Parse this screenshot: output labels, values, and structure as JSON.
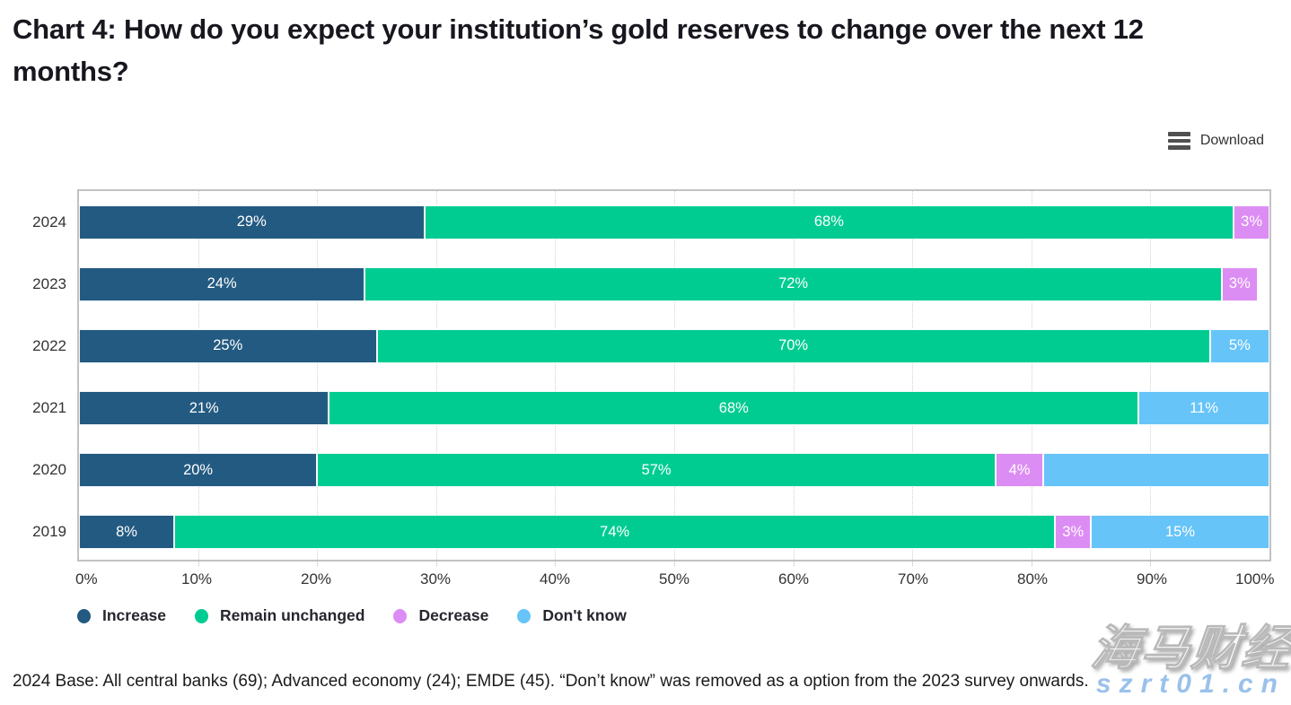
{
  "title": "Chart 4: How do you expect your institution’s gold reserves to change over the next 12 months?",
  "toolbar": {
    "download_label": "Download",
    "menu_icon": "hamburger-icon"
  },
  "colors": {
    "increase": "#235a81",
    "remain_unchanged": "#00cc92",
    "decrease": "#dc8df3",
    "dont_know": "#66c4f8",
    "plot_border": "#c2c2c2",
    "gridline": "#d2d2d2",
    "bar_label_text": "#ffffff"
  },
  "chart_data": {
    "type": "bar",
    "orientation": "horizontal",
    "stacked": true,
    "grid": "vertical-dotted",
    "legend_position": "bottom-left",
    "categories": [
      "2024",
      "2023",
      "2022",
      "2021",
      "2020",
      "2019"
    ],
    "series": [
      {
        "name": "Increase",
        "color": "#235a81",
        "values": [
          29,
          24,
          25,
          21,
          20,
          8
        ]
      },
      {
        "name": "Remain unchanged",
        "color": "#00cc92",
        "values": [
          68,
          72,
          70,
          68,
          57,
          74
        ]
      },
      {
        "name": "Decrease",
        "color": "#dc8df3",
        "values": [
          3,
          3,
          0,
          0,
          4,
          3
        ]
      },
      {
        "name": "Don't know",
        "color": "#66c4f8",
        "values": [
          0,
          0,
          5,
          11,
          19,
          15
        ]
      }
    ],
    "data_labels": [
      {
        "category": "2024",
        "labels": [
          "29%",
          "68%",
          "3%",
          ""
        ]
      },
      {
        "category": "2023",
        "labels": [
          "24%",
          "72%",
          "3%",
          ""
        ]
      },
      {
        "category": "2022",
        "labels": [
          "25%",
          "70%",
          "",
          "5%"
        ]
      },
      {
        "category": "2021",
        "labels": [
          "21%",
          "68%",
          "",
          "11%"
        ]
      },
      {
        "category": "2020",
        "labels": [
          "20%",
          "57%",
          "4%",
          ""
        ]
      },
      {
        "category": "2019",
        "labels": [
          "8%",
          "74%",
          "3%",
          "15%"
        ]
      }
    ],
    "x_axis": {
      "min": 0,
      "max": 100,
      "tick_labels": [
        "0%",
        "10%",
        "20%",
        "30%",
        "40%",
        "50%",
        "60%",
        "70%",
        "80%",
        "90%",
        "100%"
      ]
    }
  },
  "legend": [
    {
      "label": "Increase",
      "color": "#235a81"
    },
    {
      "label": "Remain unchanged",
      "color": "#00cc92"
    },
    {
      "label": "Decrease",
      "color": "#dc8df3"
    },
    {
      "label": "Don't know",
      "color": "#66c4f8"
    }
  ],
  "footnote": "2024 Base: All central banks (69); Advanced economy (24); EMDE (45). “Don’t know” was removed as a option from the 2023 survey onwards.",
  "watermark": {
    "line1": "海马财经",
    "line2": "szrt01.cn"
  }
}
